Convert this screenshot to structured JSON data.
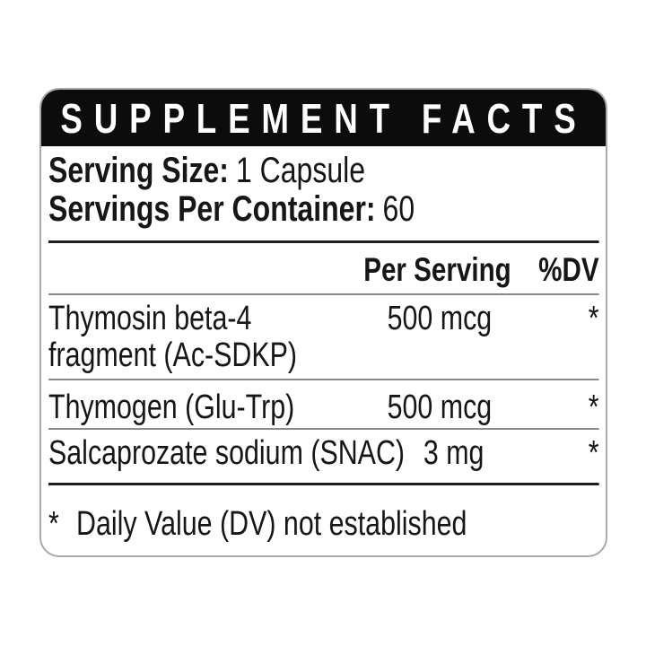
{
  "panel": {
    "title": "SUPPLEMENT FACTS",
    "serving_size": {
      "label": "Serving Size:",
      "value": "1 Capsule"
    },
    "servings_per_container": {
      "label": "Servings Per Container:",
      "value": "60"
    },
    "columns": {
      "per_serving": "Per Serving",
      "dv": "%DV"
    },
    "rows": [
      {
        "name": "Thymosin beta-4 fragment (Ac-SDKP)",
        "amount": "500 mcg",
        "dv": "*"
      },
      {
        "name": "Thymogen (Glu-Trp)",
        "amount": "500 mcg",
        "dv": "*"
      },
      {
        "name": "Salcaprozate sodium (SNAC)",
        "amount": "3 mg",
        "dv": "*"
      }
    ],
    "footnote": {
      "symbol": "*",
      "text": "Daily Value (DV) not established"
    },
    "colors": {
      "header_bar": "#0c0c0c",
      "header_text": "#ffffff",
      "body_text": "#161616",
      "row_separator": "#8a8a8a",
      "section_rule": "#1d1d1d",
      "card_border": "#a9a9a9",
      "background": "#ffffff"
    }
  }
}
